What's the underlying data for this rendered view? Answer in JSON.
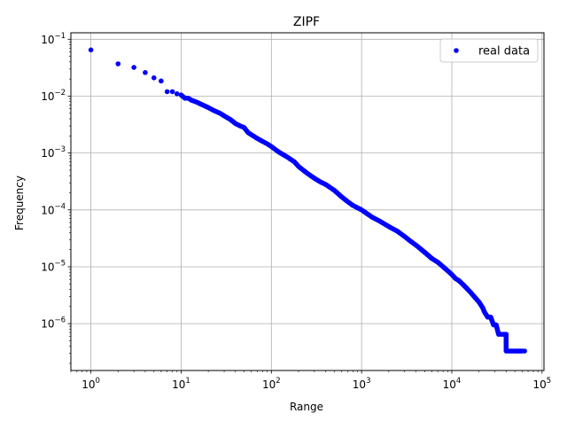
{
  "chart_data": {
    "type": "scatter",
    "title": "ZIPF",
    "xlabel": "Range",
    "ylabel": "Frequency",
    "xscale": "log",
    "yscale": "log",
    "xlim": [
      0.6,
      105000
    ],
    "ylim": [
      1.5e-07,
      0.13
    ],
    "grid": true,
    "legend_position": "top-right",
    "x_ticks": [
      {
        "value": 1,
        "base": "10",
        "exp": "0"
      },
      {
        "value": 10,
        "base": "10",
        "exp": "1"
      },
      {
        "value": 100,
        "base": "10",
        "exp": "2"
      },
      {
        "value": 1000,
        "base": "10",
        "exp": "3"
      },
      {
        "value": 10000,
        "base": "10",
        "exp": "4"
      },
      {
        "value": 100000,
        "base": "10",
        "exp": "5"
      }
    ],
    "y_ticks": [
      {
        "value": 1e-06,
        "base": "10",
        "exp": "−6"
      },
      {
        "value": 1e-05,
        "base": "10",
        "exp": "−5"
      },
      {
        "value": 0.0001,
        "base": "10",
        "exp": "−4"
      },
      {
        "value": 0.001,
        "base": "10",
        "exp": "−3"
      },
      {
        "value": 0.01,
        "base": "10",
        "exp": "−2"
      },
      {
        "value": 0.1,
        "base": "10",
        "exp": "−1"
      }
    ],
    "series": [
      {
        "name": "real data",
        "color": "#0000ff",
        "marker": "circle",
        "points": [
          [
            1,
            0.065
          ],
          [
            2,
            0.037
          ],
          [
            3,
            0.032
          ],
          [
            4,
            0.026
          ],
          [
            5,
            0.021
          ],
          [
            6,
            0.0185
          ],
          [
            7,
            0.012
          ],
          [
            8,
            0.012
          ],
          [
            9,
            0.011
          ],
          [
            10,
            0.0105
          ],
          [
            11,
            0.0092
          ],
          [
            12,
            0.0092
          ],
          [
            13,
            0.0085
          ],
          [
            15,
            0.0078
          ],
          [
            17,
            0.0071
          ],
          [
            20,
            0.0063
          ],
          [
            23,
            0.0056
          ],
          [
            27,
            0.005
          ],
          [
            30,
            0.0045
          ],
          [
            35,
            0.0039
          ],
          [
            40,
            0.0033
          ],
          [
            45,
            0.003
          ],
          [
            50,
            0.0028
          ],
          [
            55,
            0.0023
          ],
          [
            60,
            0.0021
          ],
          [
            70,
            0.0018
          ],
          [
            80,
            0.0016
          ],
          [
            90,
            0.00145
          ],
          [
            100,
            0.0013
          ],
          [
            120,
            0.00105
          ],
          [
            150,
            0.00085
          ],
          [
            180,
            0.0007
          ],
          [
            200,
            0.00058
          ],
          [
            250,
            0.00044
          ],
          [
            300,
            0.00036
          ],
          [
            350,
            0.00031
          ],
          [
            400,
            0.00028
          ],
          [
            500,
            0.00022
          ],
          [
            600,
            0.00017
          ],
          [
            700,
            0.00014
          ],
          [
            800,
            0.00012
          ],
          [
            1000,
            0.0001
          ],
          [
            1300,
            7.5e-05
          ],
          [
            1600,
            6.3e-05
          ],
          [
            2000,
            5.1e-05
          ],
          [
            2500,
            4.2e-05
          ],
          [
            3000,
            3.4e-05
          ],
          [
            3500,
            2.8e-05
          ],
          [
            4000,
            2.4e-05
          ],
          [
            5000,
            1.8e-05
          ],
          [
            6000,
            1.4e-05
          ],
          [
            7000,
            1.2e-05
          ],
          [
            8000,
            1e-05
          ],
          [
            9000,
            8.5e-06
          ],
          [
            10000,
            7.3e-06
          ],
          [
            11000,
            6.2e-06
          ],
          [
            12000,
            5.7e-06
          ],
          [
            14000,
            4.5e-06
          ],
          [
            16000,
            3.6e-06
          ],
          [
            18000,
            2.9e-06
          ],
          [
            20000,
            2.4e-06
          ],
          [
            22000,
            1.9e-06
          ],
          [
            23000,
            1.6e-06
          ],
          [
            25000,
            1.3e-06
          ],
          [
            26000,
            1.3e-06
          ],
          [
            27000,
            1.3e-06
          ],
          [
            29000,
            9.5e-07
          ],
          [
            31000,
            9.5e-07
          ],
          [
            33000,
            6.5e-07
          ],
          [
            35000,
            6.5e-07
          ],
          [
            37000,
            6.5e-07
          ],
          [
            40000,
            6.5e-07
          ],
          [
            40000,
            3.3e-07
          ],
          [
            44000,
            3.3e-07
          ],
          [
            48000,
            3.3e-07
          ],
          [
            52000,
            3.3e-07
          ],
          [
            56000,
            3.3e-07
          ],
          [
            60000,
            3.3e-07
          ],
          [
            64000,
            3.3e-07
          ]
        ]
      }
    ]
  }
}
